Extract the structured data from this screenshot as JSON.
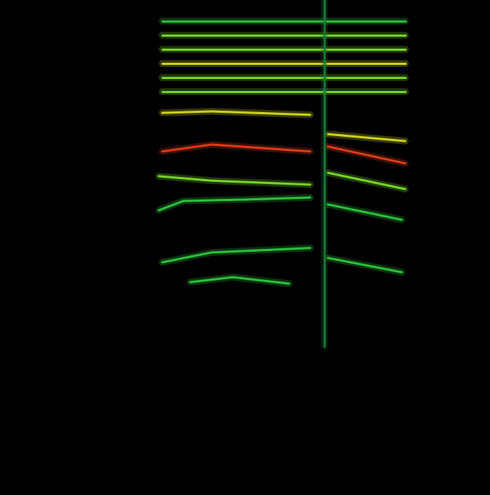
{
  "chart_data": {
    "type": "spectrogram",
    "tick_labels": false,
    "grid": false,
    "xlim": [
      0,
      1
    ],
    "ylim": [
      0,
      1
    ],
    "series": [
      {
        "color": "#2ecc40",
        "x": [
          0.331,
          0.432,
          0.633,
          0.65,
          0.669,
          0.82
        ],
        "values": [
          0.47,
          0.49,
          0.499,
          null,
          0.479,
          0.45
        ]
      },
      {
        "color": "#2ecc40",
        "x": [
          0.388,
          0.475,
          0.59
        ],
        "values": [
          0.43,
          0.44,
          0.427
        ]
      },
      {
        "color": "#2ecc40",
        "x": [
          0.324,
          0.374,
          0.504,
          0.633,
          0.65,
          0.669,
          0.82
        ],
        "values": [
          0.575,
          0.594,
          0.597,
          0.601,
          null,
          0.587,
          0.556
        ]
      },
      {
        "color": "#7fe02a",
        "x": [
          0.324,
          0.432,
          0.633,
          0.65,
          0.669,
          0.827
        ],
        "values": [
          0.644,
          0.635,
          0.627,
          null,
          0.651,
          0.618
        ]
      },
      {
        "color": "#e8401a",
        "x": [
          0.331,
          0.432,
          0.633,
          0.65,
          0.669,
          0.827
        ],
        "values": [
          0.694,
          0.708,
          0.694,
          null,
          0.704,
          0.67
        ]
      },
      {
        "color": "#d8e020",
        "x": [
          0.331,
          0.432,
          0.633,
          0.65,
          0.669,
          0.827
        ],
        "values": [
          0.772,
          0.775,
          0.768,
          null,
          0.729,
          0.715
        ]
      },
      {
        "color": "#7fe02a",
        "x": [
          0.331,
          0.827
        ],
        "values": [
          0.815,
          0.815
        ]
      },
      {
        "color": "#7fe02a",
        "x": [
          0.331,
          0.827
        ],
        "values": [
          0.843,
          0.843
        ]
      },
      {
        "color": "#d8e020",
        "x": [
          0.331,
          0.827
        ],
        "values": [
          0.872,
          0.872
        ]
      },
      {
        "color": "#7fe02a",
        "x": [
          0.331,
          0.827
        ],
        "values": [
          0.9,
          0.9
        ]
      },
      {
        "color": "#7fe02a",
        "x": [
          0.331,
          0.827
        ],
        "values": [
          0.929,
          0.929
        ]
      },
      {
        "color": "#2ecc40",
        "x": [
          0.331,
          0.827
        ],
        "values": [
          0.957,
          0.957
        ]
      },
      {
        "color": "#1f7a3a",
        "x": [
          0.662,
          0.662
        ],
        "values": [
          0.3,
          1.0
        ]
      }
    ]
  }
}
